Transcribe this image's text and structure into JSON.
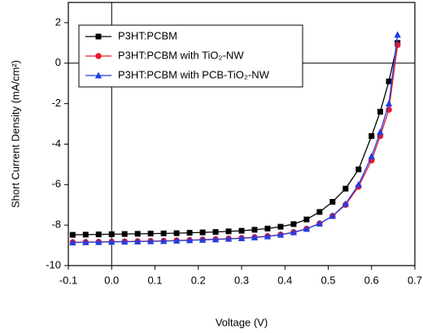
{
  "chart_data": {
    "type": "line",
    "xlabel": "Voltage (V)",
    "ylabel": "Short Current Density (mA/cm²)",
    "x": [
      -0.09,
      -0.06,
      -0.03,
      0,
      0.03,
      0.06,
      0.09,
      0.12,
      0.15,
      0.18,
      0.21,
      0.24,
      0.27,
      0.3,
      0.33,
      0.36,
      0.39,
      0.42,
      0.45,
      0.48,
      0.51,
      0.54,
      0.57,
      0.6,
      0.62,
      0.64,
      0.66
    ],
    "series": [
      {
        "name": "P3HT:PCBM",
        "color": "#000000",
        "marker": "square",
        "values": [
          -8.48,
          -8.47,
          -8.46,
          -8.45,
          -8.44,
          -8.43,
          -8.42,
          -8.41,
          -8.4,
          -8.38,
          -8.36,
          -8.34,
          -8.31,
          -8.28,
          -8.23,
          -8.17,
          -8.08,
          -7.95,
          -7.72,
          -7.35,
          -6.85,
          -6.2,
          -5.25,
          -3.6,
          -2.4,
          -0.9,
          1.0
        ]
      },
      {
        "name": "P3HT:PCBM with TiO₂-NW",
        "color": "#e8192c",
        "marker": "circle",
        "values": [
          -8.85,
          -8.84,
          -8.83,
          -8.82,
          -8.81,
          -8.8,
          -8.79,
          -8.78,
          -8.76,
          -8.74,
          -8.72,
          -8.7,
          -8.67,
          -8.64,
          -8.6,
          -8.55,
          -8.47,
          -8.35,
          -8.18,
          -7.92,
          -7.55,
          -7.0,
          -6.1,
          -4.8,
          -3.6,
          -2.3,
          0.9
        ]
      },
      {
        "name": "P3HT:PCBM with PCB-TiO₂-NW",
        "color": "#1f3fe0",
        "marker": "triangle",
        "values": [
          -8.86,
          -8.85,
          -8.84,
          -8.83,
          -8.82,
          -8.81,
          -8.8,
          -8.79,
          -8.77,
          -8.75,
          -8.73,
          -8.71,
          -8.68,
          -8.65,
          -8.61,
          -8.56,
          -8.48,
          -8.36,
          -8.19,
          -7.93,
          -7.55,
          -6.95,
          -6.0,
          -4.6,
          -3.4,
          -2.0,
          1.4
        ]
      }
    ],
    "xlim": [
      -0.1,
      0.7
    ],
    "ylim": [
      -10,
      3
    ],
    "xticks": [
      -0.1,
      {
        "value": 0,
        "label": "0.0"
      },
      0.1,
      0.2,
      0.3,
      0.4,
      0.5,
      0.6,
      0.7
    ],
    "yticks": [
      -10,
      -8,
      -6,
      -4,
      -2,
      0,
      2
    ],
    "legend": "upper left"
  }
}
